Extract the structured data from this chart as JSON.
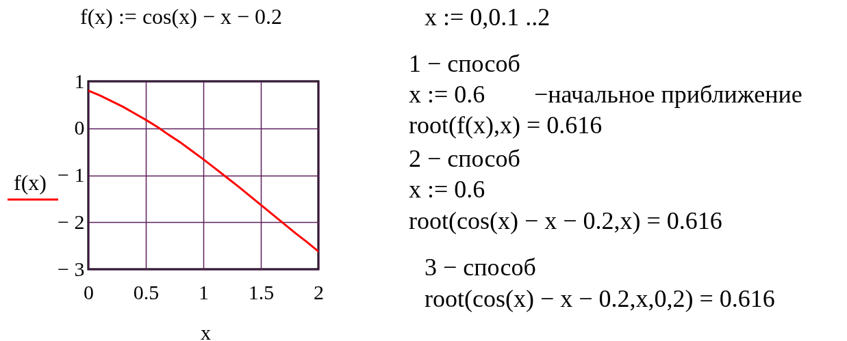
{
  "chart_data": {
    "type": "line",
    "x": [
      0,
      0.1,
      0.2,
      0.3,
      0.4,
      0.5,
      0.6,
      0.7,
      0.8,
      0.9,
      1,
      1.1,
      1.2,
      1.3,
      1.4,
      1.5,
      1.6,
      1.7,
      1.8,
      1.9,
      2
    ],
    "series": [
      {
        "name": "f(x)",
        "color": "#ff0000",
        "values": [
          0.8,
          0.7,
          0.58,
          0.46,
          0.32,
          0.18,
          0.03,
          -0.14,
          -0.3,
          -0.48,
          -0.66,
          -0.85,
          -1.04,
          -1.23,
          -1.43,
          -1.63,
          -1.83,
          -2.03,
          -2.23,
          -2.42,
          -2.62
        ]
      }
    ],
    "xlabel": "x",
    "xlim": [
      0,
      2
    ],
    "ylim": [
      -3,
      1
    ],
    "xticks": [
      0,
      0.5,
      1,
      1.5,
      2
    ],
    "yticks": [
      {
        "value": -3,
        "label": "− 3"
      },
      {
        "value": -2,
        "label": "− 2"
      },
      {
        "value": -1,
        "label": "− 1"
      },
      0,
      1
    ],
    "grid": true,
    "legend": "left",
    "marker": "none",
    "line_style": "solid",
    "annotations": [
      "f(x) := cos(x) − x − 0.2",
      "x := 0,0.1 ..2",
      "1 − способ",
      "x := 0.6",
      "−начальное приближение",
      "root(f(x),x) = 0.616",
      "2 − способ",
      "x := 0.6",
      "root(cos(x) − x − 0.2,x) = 0.616",
      "3 − способ",
      "root(cos(x) − x − 0.2,x,0,2) = 0.616"
    ]
  }
}
